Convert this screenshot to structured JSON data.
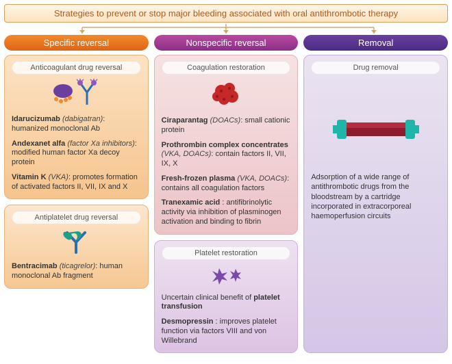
{
  "title": "Strategies to prevent or stop major bleeding associated with oral antithrombotic therapy",
  "title_style": {
    "bg_top": "#fef4e6",
    "bg_bottom": "#fde3c0",
    "border": "#d8a05a",
    "text": "#b35a1a",
    "fontsize": 13
  },
  "connector_color": "#cfa86a",
  "columns": [
    {
      "header": "Specific reversal",
      "header_bg_from": "#f08a2c",
      "header_bg_to": "#e06414",
      "cards": [
        {
          "title": "Anticoagulant drug reversal",
          "bg_from": "#fce3c4",
          "bg_to": "#f6c48e",
          "border": "#e8b277",
          "icon": "ab-blob",
          "entries": [
            {
              "name": "Idarucizumab",
              "target": "(dabigatran)",
              "desc": ": humanized monoclonal Ab"
            },
            {
              "name": "Andexanet alfa",
              "target": "(factor Xa inhibitors)",
              "desc": ": modified human factor Xa decoy protein"
            },
            {
              "name": "Vitamin K",
              "target": "(VKA)",
              "desc": ": promotes formation of activated factors II, VII, IX and X"
            }
          ]
        },
        {
          "title": "Antiplatelet drug reversal",
          "bg_from": "#fde6cd",
          "bg_to": "#f6c792",
          "border": "#e8b277",
          "icon": "ab-frag",
          "entries": [
            {
              "name": "Bentracimab",
              "target": "(ticagrelor)",
              "desc": ": human monoclonal Ab fragment"
            }
          ]
        }
      ]
    },
    {
      "header": "Nonspecific reversal",
      "header_bg_from": "#b84aa0",
      "header_bg_to": "#8a2f86",
      "cards": [
        {
          "title": "Coagulation restoration",
          "bg_from": "#f6e2e2",
          "bg_to": "#ecc4c8",
          "border": "#deb2b8",
          "icon": "clot",
          "entries": [
            {
              "name": "Ciraparantag",
              "target": "(DOACs)",
              "desc": ": small cationic protein"
            },
            {
              "name": "Prothrombin complex concentrates",
              "target": "(VKA, DOACs)",
              "desc": ": contain factors II, VII, IX, X"
            },
            {
              "name": "Fresh-frozen plasma",
              "target": "(VKA, DOACs)",
              "desc": ": contains all coagulation factors"
            },
            {
              "name": "Tranexamic acid",
              "target": "",
              "desc": ": antifibrinolytic activity via inhibition of plasminogen activation and binding to fibrin"
            }
          ]
        },
        {
          "title": "Platelet restoration",
          "bg_from": "#eee1f0",
          "bg_to": "#ddc3e4",
          "border": "#cdb0d8",
          "icon": "platelet",
          "entries": [
            {
              "name": "",
              "target": "",
              "desc": "Uncertain clinical benefit of ",
              "bold_tail": "platelet transfusion"
            },
            {
              "name": "Desmopressin",
              "target": "",
              "desc": ": improves platelet function via factors VIII and von Willebrand"
            }
          ]
        }
      ]
    },
    {
      "header": "Removal",
      "header_bg_from": "#6b3fa0",
      "header_bg_to": "#4a2b82",
      "cards": [
        {
          "title": "Drug removal",
          "bg_from": "#eae3f1",
          "bg_to": "#d4c6e6",
          "border": "#c3b1dc",
          "icon": "cartridge",
          "fill": true,
          "caption": "Adsorption of a wide range of antithrombotic drugs from the bloodstream by a cartridge incorporated in extracorporeal haemoperfusion circuits"
        }
      ]
    }
  ]
}
